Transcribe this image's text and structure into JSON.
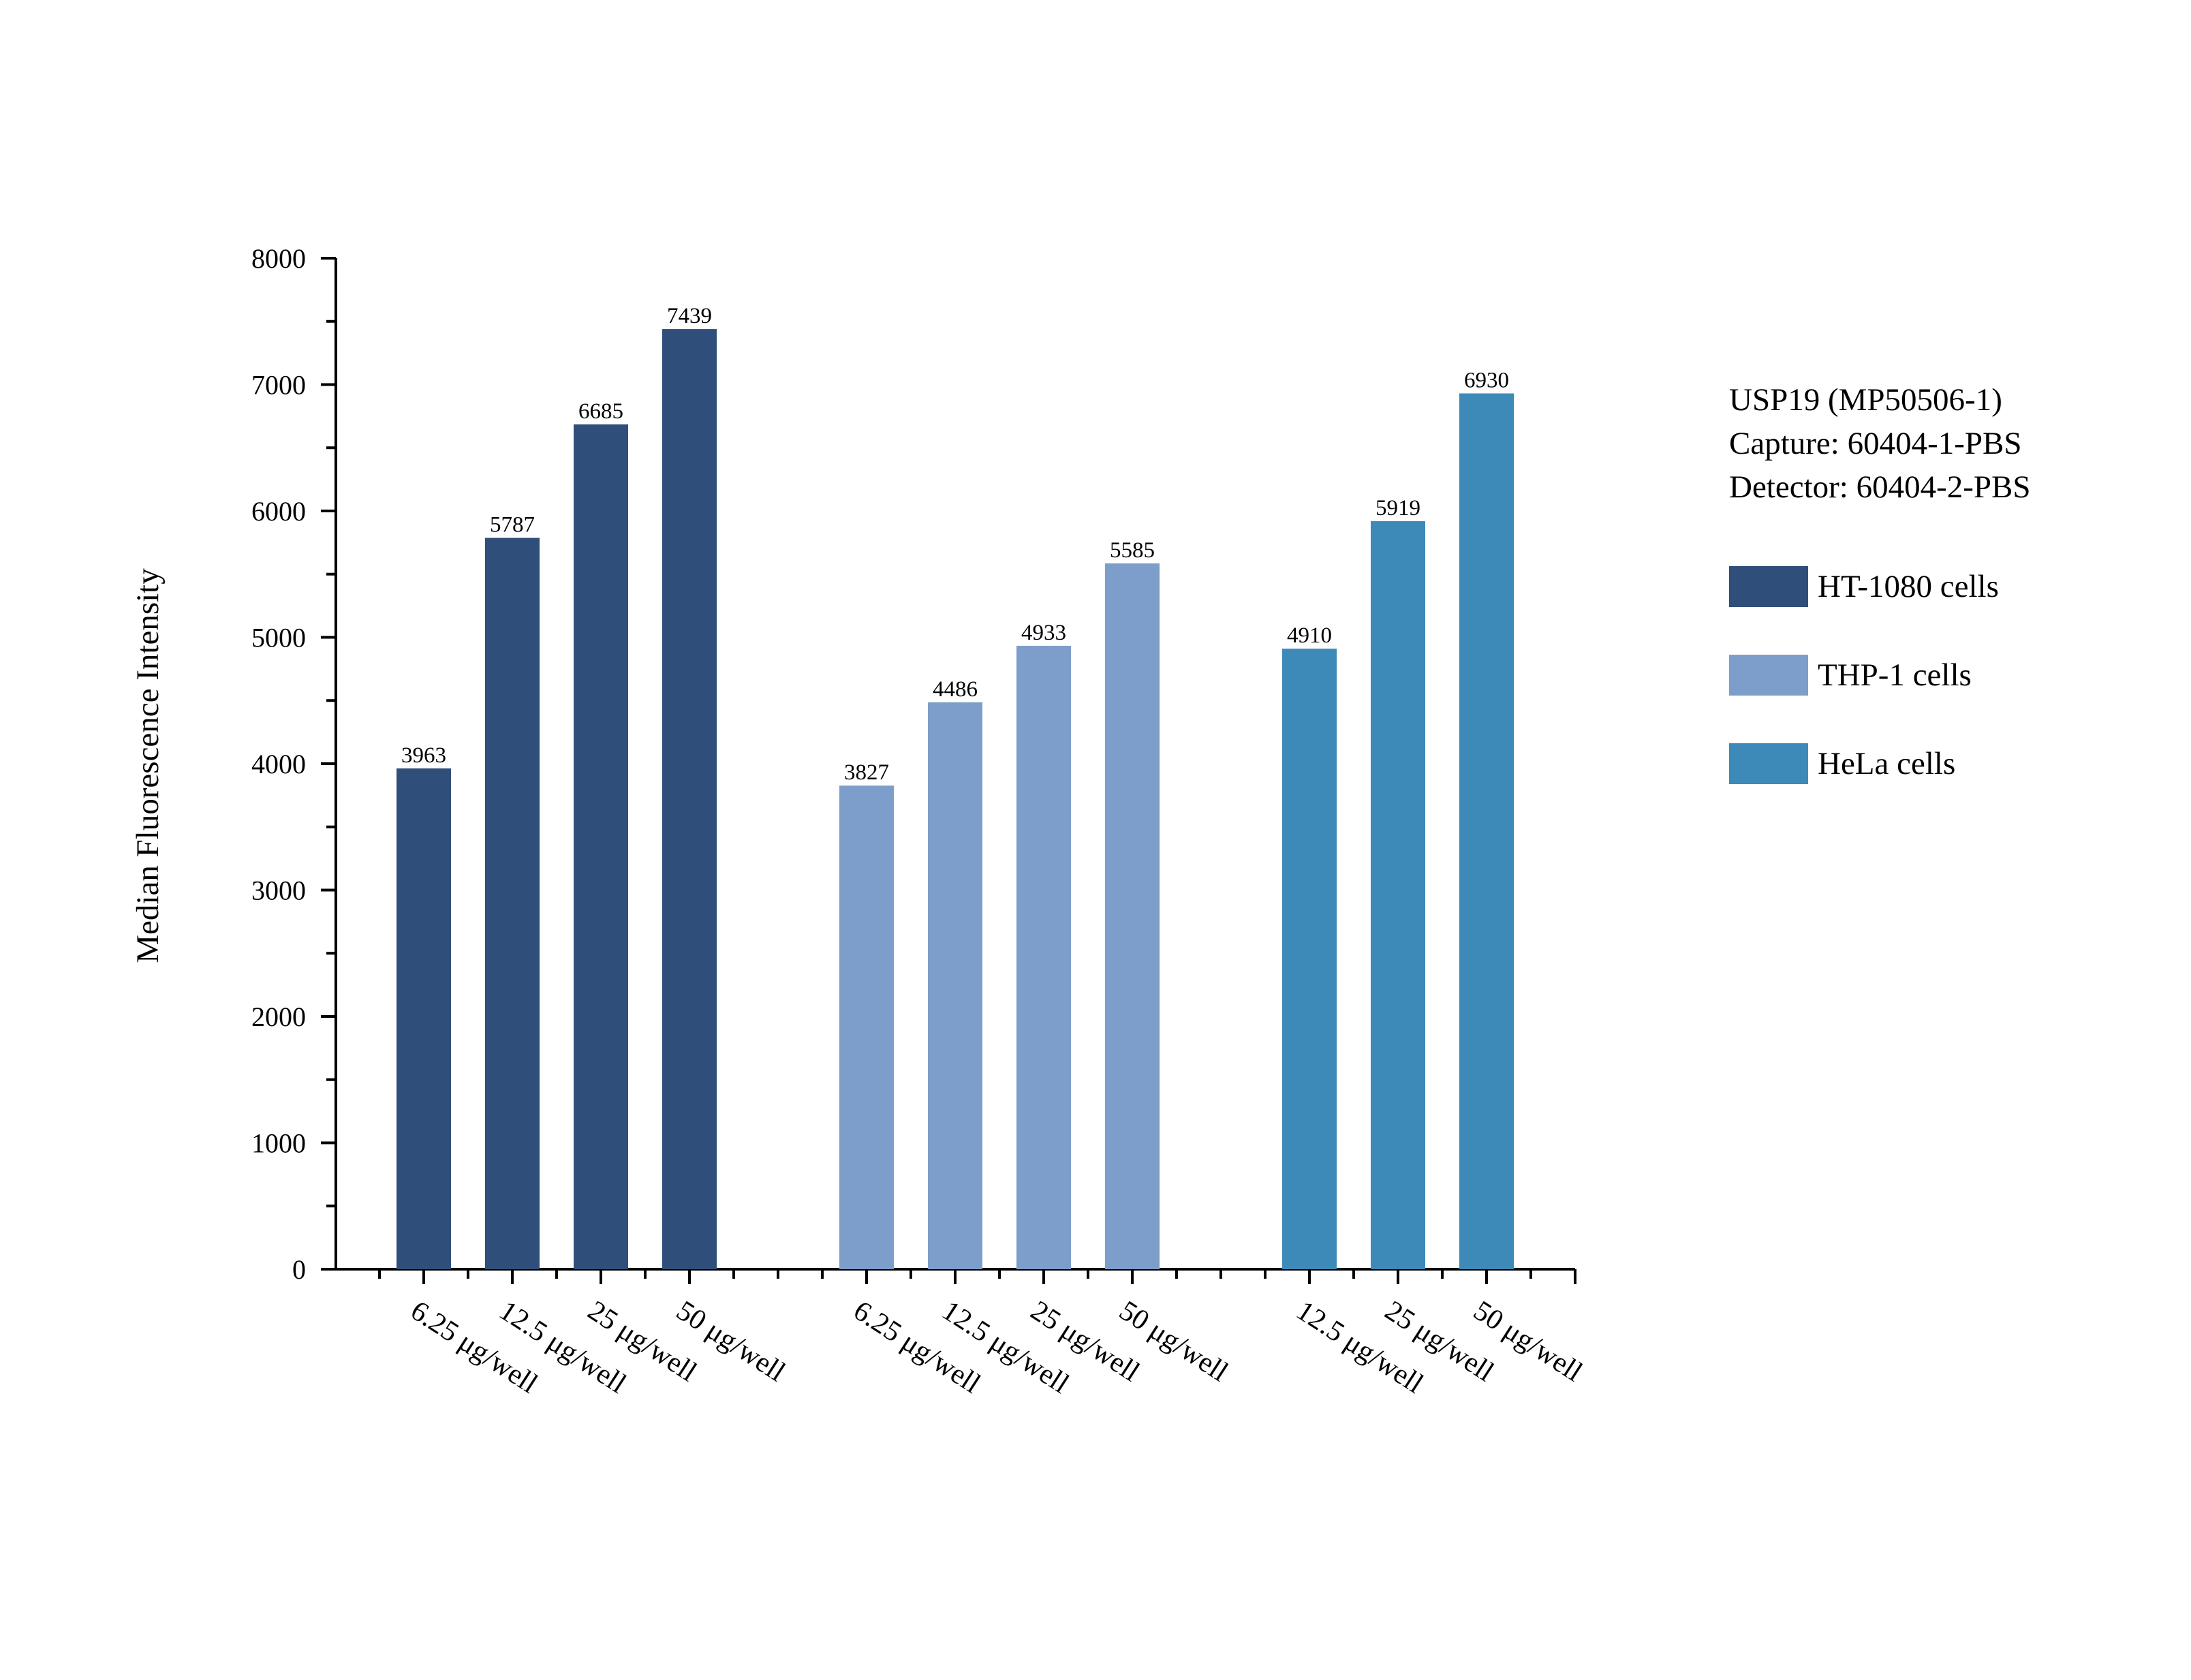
{
  "chart_data": {
    "type": "bar",
    "title": "USP19 (MP50506-1)",
    "subtitle": [
      "Capture: 60404-1-PBS",
      "Detector: 60404-2-PBS"
    ],
    "xlabel": "",
    "ylabel": "Median Fluorescence Intensity",
    "ylim": [
      0,
      8000
    ],
    "yticks": [
      "0",
      "1000",
      "2000",
      "3000",
      "4000",
      "5000",
      "6000",
      "7000",
      "8000"
    ],
    "legend_position": "right",
    "groups": [
      {
        "name": "HT-1080 cells",
        "color": "#2f4f7a",
        "categories": [
          "6.25 μg/well",
          "12.5 μg/well",
          "25 μg/well",
          "50 μg/well"
        ],
        "values": [
          3963,
          5787,
          6685,
          7439
        ],
        "labels": [
          "3963",
          "5787",
          "6685",
          "7439"
        ]
      },
      {
        "name": "THP-1 cells",
        "color": "#7d9ecb",
        "categories": [
          "6.25 μg/well",
          "12.5 μg/well",
          "25 μg/well",
          "50 μg/well"
        ],
        "values": [
          3827,
          4486,
          4933,
          5585
        ],
        "labels": [
          "3827",
          "4486",
          "4933",
          "5585"
        ]
      },
      {
        "name": "HeLa cells",
        "color": "#3d89b8",
        "categories": [
          "12.5 μg/well",
          "25 μg/well",
          "50 μg/well"
        ],
        "values": [
          4910,
          5919,
          6930
        ],
        "labels": [
          "4910",
          "5919",
          "6930"
        ]
      }
    ]
  }
}
